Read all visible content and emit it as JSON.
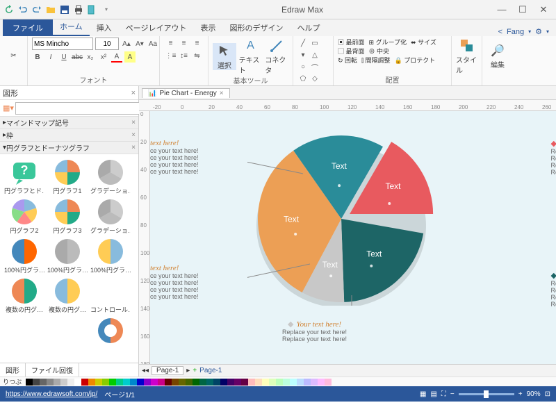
{
  "app": {
    "title": "Edraw Max",
    "user": "Fang"
  },
  "qat_icons": [
    "reload",
    "undo",
    "redo",
    "open",
    "save",
    "print",
    "export"
  ],
  "win_btns": [
    "—",
    "☐",
    "✕"
  ],
  "ribbon": {
    "file": "ファイル",
    "tabs": [
      "ホーム",
      "挿入",
      "ページレイアウト",
      "表示",
      "図形のデザイン",
      "ヘルプ"
    ],
    "active": 0,
    "share_icon": "<",
    "clipboard": {
      "label": ""
    },
    "font": {
      "name": "MS Mincho",
      "size": "10",
      "group_label": "フォント",
      "btns_top": [
        "A",
        "A",
        "A",
        "A",
        "Aa"
      ],
      "btns_bot": [
        "B",
        "I",
        "U",
        "abc",
        "x₂",
        "x²",
        "A",
        "A"
      ]
    },
    "para": {
      "btns": [
        "≡",
        "≡",
        "≡",
        "≡",
        "⋮",
        "↕",
        "⇋"
      ]
    },
    "basic": {
      "label": "基本ツール",
      "select": "選択",
      "text": "テキスト",
      "connector": "コネクタ"
    },
    "shapes": {
      "items": [
        "/",
        "□",
        "△",
        "○",
        "⬠",
        "◇",
        "—"
      ]
    },
    "arrange": {
      "label": "配置",
      "items": [
        "最前面",
        "最背面",
        "回転",
        "グループ化",
        "中央",
        "間隔調整",
        "サイズ",
        "プロテクト"
      ]
    },
    "style": {
      "label": "スタイル"
    },
    "edit": {
      "label": "編集"
    }
  },
  "side": {
    "title": "図形",
    "cats": [
      "マインドマップ記号",
      "枠",
      "円グラフとドーナツグラフ"
    ],
    "shapes": [
      [
        "円グラフとド…",
        "円グラフ1",
        "グラデーショ…"
      ],
      [
        "円グラフ2",
        "円グラフ3",
        "グラデーショ…"
      ],
      [
        "100%円グラ…",
        "100%円グラ…",
        "100%円グラ…"
      ],
      [
        "複数の円グ…",
        "複数の円グ…",
        "コントロール…"
      ]
    ],
    "tabs": [
      "図形",
      "ファイル回復"
    ]
  },
  "doc": {
    "tab": "Pie Chart - Energy"
  },
  "ruler_h": [
    "-20",
    "0",
    "20",
    "40",
    "60",
    "80",
    "100",
    "120",
    "140",
    "160",
    "180",
    "200",
    "220",
    "240",
    "260",
    "280"
  ],
  "ruler_v": [
    "0",
    "20",
    "40",
    "60",
    "80",
    "100",
    "120",
    "140",
    "160",
    "180"
  ],
  "chart": {
    "slices": [
      {
        "color": "#2a8c99",
        "label": "Text",
        "start": -125,
        "size": 65
      },
      {
        "color": "#e85a5f",
        "label": "Text",
        "start": -60,
        "size": 60
      },
      {
        "color": "#1d6566",
        "label": "Text",
        "start": 10,
        "size": 78
      },
      {
        "color": "#c8c8c8",
        "label": "Text",
        "start": 88,
        "size": 30
      },
      {
        "color": "#ec9f55",
        "label": "Text",
        "start": 118,
        "size": 117
      }
    ],
    "explode_idx": 1,
    "callouts": {
      "tl": {
        "title": "text here!",
        "lines": [
          "ce your text here!",
          "ce your text here!",
          "ce your text here!",
          "ce your text here!"
        ]
      },
      "tr": {
        "title": "Your text h",
        "lines": [
          "Replace your tex",
          "Replace your tex",
          "Replace your tex",
          "Replace your tex"
        ]
      },
      "bl": {
        "title": "text here!",
        "lines": [
          "ce your text here!",
          "ce your text here!",
          "ce your text here!",
          "ce your text here!"
        ]
      },
      "br": {
        "title": "Your text h",
        "lines": [
          "Replace your tex",
          "Replace your tex",
          "Replace your tex",
          "Replace your tex"
        ]
      },
      "bc": {
        "title": "Your text here!",
        "lines": [
          "Replace your text here!",
          "Replace your text here!"
        ]
      }
    },
    "diamond_colors": {
      "tr": "#e85a5f",
      "br": "#1d6566",
      "bc": "#c8c8c8"
    }
  },
  "right_swatches": [
    "#f9e79f",
    "#7ed6c6",
    "#b0d0f0",
    "#fad7a0",
    "#ffffff",
    "#ffffff"
  ],
  "page_bar": {
    "page": "Page-1",
    "page2": "Page-1"
  },
  "palette": [
    "#000",
    "#444",
    "#666",
    "#888",
    "#aaa",
    "#ccc",
    "#eee",
    "#fff",
    "#c00",
    "#e80",
    "#cc0",
    "#8c0",
    "#0c0",
    "#0c8",
    "#0cc",
    "#08c",
    "#00c",
    "#80c",
    "#c0c",
    "#c08",
    "#600",
    "#740",
    "#660",
    "#460",
    "#060",
    "#064",
    "#066",
    "#046",
    "#006",
    "#406",
    "#606",
    "#604",
    "#fbb",
    "#fdb",
    "#ffb",
    "#dfb",
    "#bfb",
    "#bfd",
    "#bff",
    "#bdf",
    "#bbf",
    "#dbf",
    "#fbf",
    "#fbd"
  ],
  "status": {
    "link": "https://www.edrawsoft.com/jp/",
    "page": "ページ1/1",
    "ritsu": "りつぶ",
    "zoom": "90%"
  }
}
